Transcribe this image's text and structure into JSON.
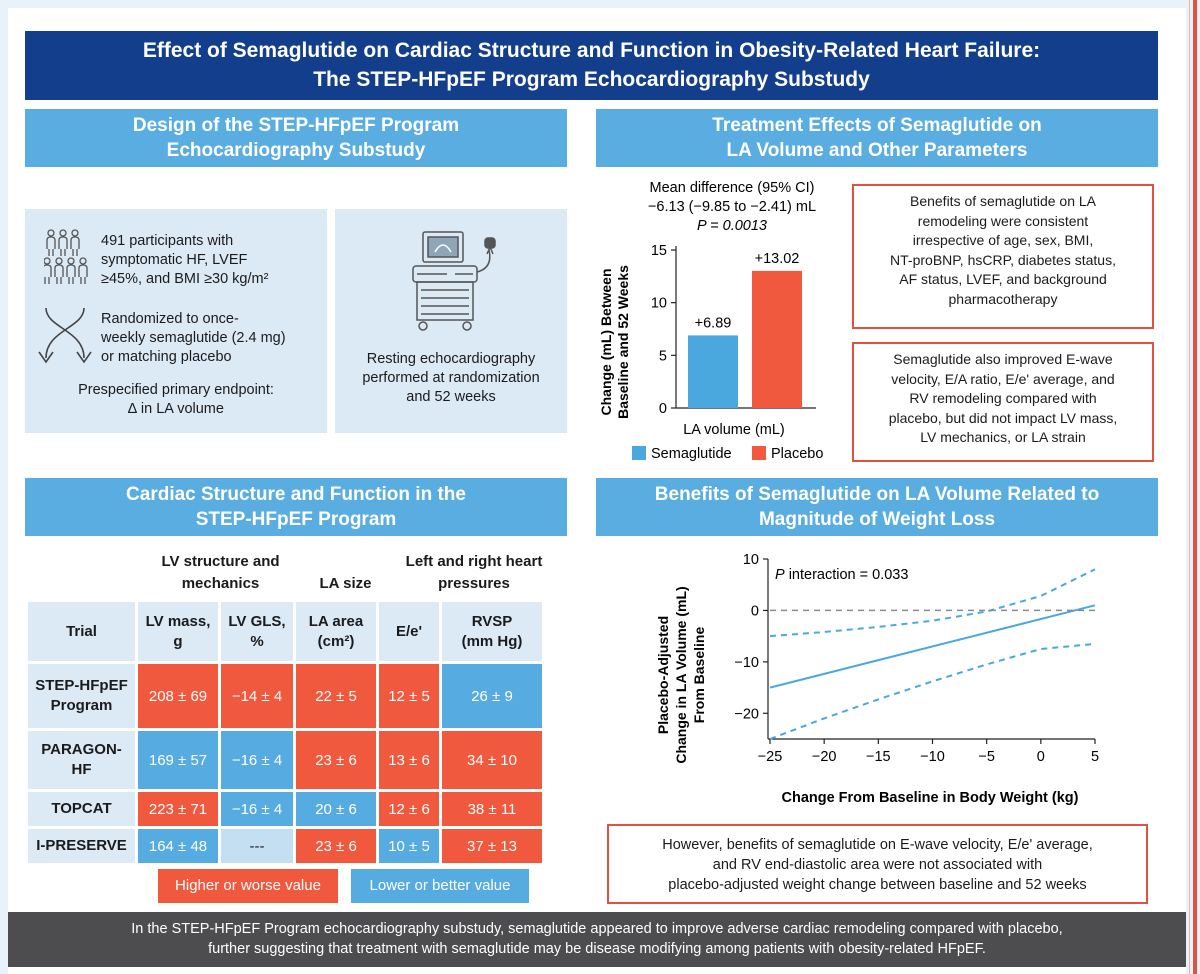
{
  "title": {
    "line1": "Effect of Semaglutide on Cardiac Structure and Function in Obesity-Related Heart Failure:",
    "line2": "The STEP-HFpEF Program Echocardiography Substudy"
  },
  "design": {
    "header_line1": "Design of the STEP-HFpEF Program",
    "header_line2": "Echocardiography Substudy",
    "participants_line1": "491 participants with",
    "participants_line2": "symptomatic HF, LVEF",
    "participants_line3": "≥45%, and BMI ≥30 kg/m²",
    "randomized_line1": "Randomized to once-",
    "randomized_line2": "weekly semaglutide (2.4 mg)",
    "randomized_line3": "or matching placebo",
    "endpoint_line1": "Prespecified primary endpoint:",
    "endpoint_line2": "∆ in LA volume",
    "echo_line1": "Resting echocardiography",
    "echo_line2": "performed at randomization",
    "echo_line3": "and 52 weeks",
    "icons": [
      "people-group-icon",
      "crossing-arrows-icon",
      "echocardiography-machine-icon"
    ]
  },
  "effects": {
    "header_line1": "Treatment Effects of Semaglutide on",
    "header_line2": "LA Volume and Other Parameters",
    "callout1": [
      "Benefits of semaglutide on LA",
      "remodeling were consistent",
      "irrespective of age, sex, BMI,",
      "NT-proBNP, hsCRP, diabetes status,",
      "AF status, LVEF, and background",
      "pharmacotherapy"
    ],
    "callout2": [
      "Semaglutide also improved E-wave",
      "velocity, E/A ratio, E/e' average, and",
      "RV remodeling compared with",
      "placebo, but did not impact LV mass,",
      "LV mechanics, or LA strain"
    ]
  },
  "chart_data": [
    {
      "type": "bar",
      "title_line1": "Mean difference (95% CI)",
      "title_line2": "−6.13 (−9.85 to −2.41) mL",
      "title_line3": "P = 0.0013",
      "ylabel_line1": "Change (mL) Between",
      "ylabel_line2": "Baseline and 52 Weeks",
      "xlabel": "LA volume (mL)",
      "categories": [
        "Semaglutide",
        "Placebo"
      ],
      "values": [
        6.89,
        13.02
      ],
      "value_labels": [
        "+6.89",
        "+13.02"
      ],
      "colors": [
        "#4aa8de",
        "#f1593e"
      ],
      "ylim": [
        0,
        15
      ],
      "yticks": [
        "0",
        "5",
        "10",
        "15"
      ],
      "legend": [
        "Semaglutide",
        "Placebo"
      ]
    },
    {
      "type": "line",
      "title_line1": "Benefits of Semaglutide on LA Volume Related to",
      "title_line2": "Magnitude of Weight Loss",
      "annotation": "P interaction = 0.033",
      "annotation_italic": "P",
      "annotation_rest": " interaction = 0.033",
      "ylabel_line1": "Placebo-Adjusted",
      "ylabel_line2": "Change in LA Volume (mL)",
      "ylabel_line3": "From Baseline",
      "xlabel": "Change From Baseline in Body Weight (kg)",
      "xlim": [
        -25,
        5
      ],
      "ylim": [
        -25,
        10
      ],
      "xticks": [
        "−25",
        "−20",
        "−15",
        "−10",
        "−5",
        "0",
        "5"
      ],
      "yticks": [
        "10",
        "0",
        "−10",
        "−20"
      ],
      "series": [
        {
          "name": "estimate",
          "style": "solid",
          "x": [
            -25,
            5
          ],
          "y": [
            -15,
            1
          ]
        },
        {
          "name": "upper-ci",
          "style": "dashed",
          "x": [
            -25,
            -20,
            -15,
            -10,
            -5,
            0,
            5
          ],
          "y": [
            -5,
            -4.2,
            -3.2,
            -2,
            -0.2,
            2.8,
            8
          ]
        },
        {
          "name": "lower-ci",
          "style": "dashed",
          "x": [
            -25,
            -20,
            -15,
            -10,
            -5,
            0,
            5
          ],
          "y": [
            -25,
            -21,
            -17.3,
            -13.8,
            -10.5,
            -7.5,
            -6.5
          ]
        },
        {
          "name": "zero-reference",
          "style": "dashed-gray",
          "x": [
            -25,
            5
          ],
          "y": [
            0,
            0
          ]
        }
      ],
      "callout": [
        "However, benefits of semaglutide on E-wave velocity, E/e' average,",
        "and RV end-diastolic area were not associated with",
        "placebo-adjusted weight change between baseline and 52 weeks"
      ]
    }
  ],
  "table": {
    "header_line1": "Cardiac Structure and Function in the",
    "header_line2": "STEP-HFpEF Program",
    "group_lv_line1": "LV structure and",
    "group_lv_line2": "mechanics",
    "group_la": "LA size",
    "group_pressures_line1": "Left and right heart",
    "group_pressures_line2": "pressures",
    "columns": [
      {
        "line1": "Trial",
        "line2": ""
      },
      {
        "line1": "LV mass,",
        "line2": "g"
      },
      {
        "line1": "LV GLS,",
        "line2": "%"
      },
      {
        "line1": "LA area",
        "line2": "(cm²)"
      },
      {
        "line1": "E/e'",
        "line2": ""
      },
      {
        "line1": "RVSP",
        "line2": "(mm Hg)"
      }
    ],
    "rows": [
      {
        "trial_line1": "STEP-HFpEF",
        "trial_line2": "Program",
        "cells": [
          {
            "v": "208 ± 69",
            "c": "hi"
          },
          {
            "v": "−14 ± 4",
            "c": "hi"
          },
          {
            "v": "22 ± 5",
            "c": "hi"
          },
          {
            "v": "12 ± 5",
            "c": "hi"
          },
          {
            "v": "26 ± 9",
            "c": "lo"
          }
        ]
      },
      {
        "trial_line1": "PARAGON-",
        "trial_line2": "HF",
        "cells": [
          {
            "v": "169 ± 57",
            "c": "lo"
          },
          {
            "v": "−16 ± 4",
            "c": "lo"
          },
          {
            "v": "23 ± 6",
            "c": "hi"
          },
          {
            "v": "13 ± 6",
            "c": "hi"
          },
          {
            "v": "34 ± 10",
            "c": "hi"
          }
        ]
      },
      {
        "trial_line1": "TOPCAT",
        "trial_line2": "",
        "cells": [
          {
            "v": "223 ± 71",
            "c": "hi"
          },
          {
            "v": "−16 ± 4",
            "c": "lo"
          },
          {
            "v": "20 ± 6",
            "c": "lo"
          },
          {
            "v": "12 ± 6",
            "c": "hi"
          },
          {
            "v": "38 ± 11",
            "c": "hi"
          }
        ]
      },
      {
        "trial_line1": "I-PRESERVE",
        "trial_line2": "",
        "cells": [
          {
            "v": "164 ± 48",
            "c": "lo"
          },
          {
            "v": "---",
            "c": "na"
          },
          {
            "v": "23 ± 6",
            "c": "hi"
          },
          {
            "v": "10 ± 5",
            "c": "lo"
          },
          {
            "v": "37 ± 13",
            "c": "hi"
          }
        ]
      }
    ],
    "legend_high": "Higher or worse value",
    "legend_low": "Lower or better value"
  },
  "footer": {
    "line1": "In the STEP-HFpEF Program echocardiography substudy, semaglutide appeared to improve adverse cardiac remodeling compared with placebo,",
    "line2": "further suggesting that treatment with semaglutide may be disease modifying among patients with obesity-related HFpEF."
  },
  "colors": {
    "navy": "#133e8c",
    "section_blue": "#5aade0",
    "panel": "#dceaf6",
    "red": "#f1593e",
    "blue": "#56abe0",
    "footer": "#4d4d4f"
  }
}
